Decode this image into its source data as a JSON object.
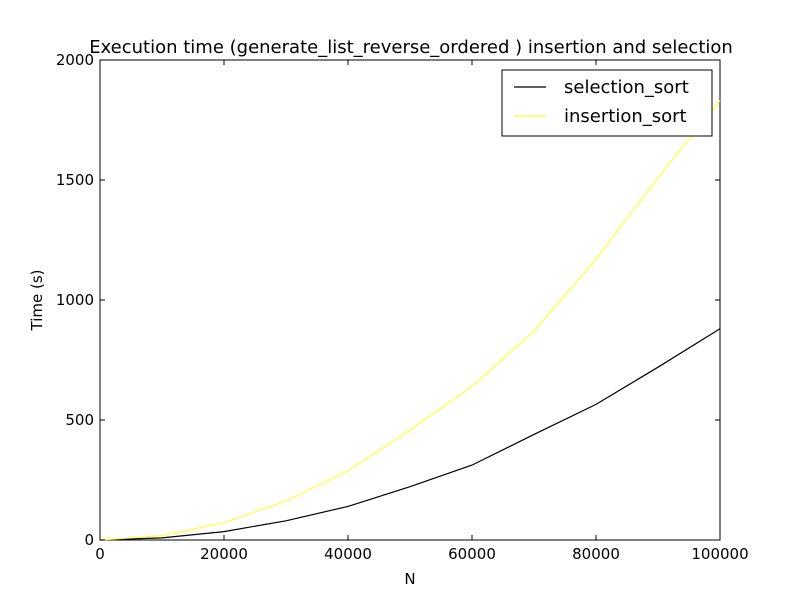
{
  "chart_data": {
    "type": "line",
    "title": "Execution time (generate_list_reverse_ordered ) insertion and selection",
    "xlabel": "N",
    "ylabel": "Time (s)",
    "xlim": [
      0,
      100000
    ],
    "ylim": [
      0,
      2000
    ],
    "x_ticks": [
      0,
      20000,
      40000,
      60000,
      80000,
      100000
    ],
    "y_ticks": [
      0,
      500,
      1000,
      1500,
      2000
    ],
    "x_tick_labels": [
      "0",
      "20000",
      "40000",
      "60000",
      "80000",
      "100000"
    ],
    "y_tick_labels": [
      "0",
      "500",
      "1000",
      "1500",
      "2000"
    ],
    "grid": false,
    "legend_position": "top-right",
    "x": [
      0,
      10000,
      20000,
      30000,
      40000,
      50000,
      60000,
      70000,
      80000,
      90000,
      100000
    ],
    "series": [
      {
        "name": "selection_sort",
        "color": "#000000",
        "values": [
          0,
          9,
          35,
          80,
          140,
          222,
          312,
          440,
          565,
          720,
          880
        ]
      },
      {
        "name": "insertion_sort",
        "color": "#ffff33",
        "values": [
          0,
          18,
          72,
          162,
          288,
          458,
          640,
          870,
          1170,
          1510,
          1830
        ]
      }
    ]
  }
}
